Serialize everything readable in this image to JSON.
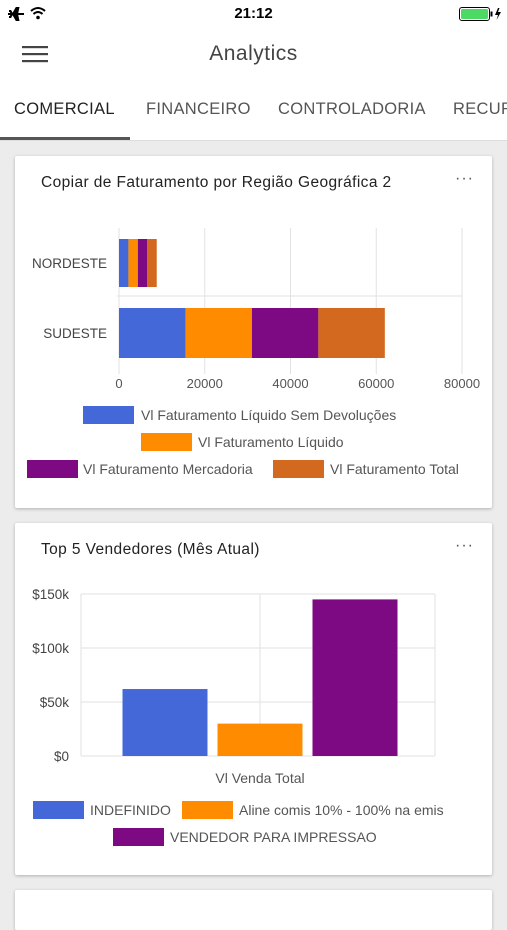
{
  "status_bar": {
    "time": "21:12"
  },
  "header": {
    "title": "Analytics"
  },
  "tabs": [
    {
      "label": "COMERCIAL",
      "active": true
    },
    {
      "label": "FINANCEIRO",
      "active": false
    },
    {
      "label": "CONTROLADORIA",
      "active": false
    },
    {
      "label": "RECUR",
      "active": false
    }
  ],
  "icons": {
    "menu": "hamburger-menu-icon",
    "more": "ellipsis-icon"
  },
  "cards": [
    {
      "title": "Copiar de Faturamento por Região Geográfica 2",
      "menu": "···"
    },
    {
      "title": "Top 5 Vendedores (Mês Atual)",
      "menu": "···"
    }
  ],
  "chart_data": [
    {
      "type": "bar",
      "orientation": "horizontal",
      "stacked": true,
      "title": "Copiar de Faturamento por Região Geográfica 2",
      "categories": [
        "NORDESTE",
        "SUDESTE"
      ],
      "series": [
        {
          "name": "Vl Faturamento Líquido Sem Devoluções",
          "color": "#4468d8",
          "values": [
            2200,
            15500
          ]
        },
        {
          "name": "Vl Faturamento Líquido",
          "color": "#ff8c00",
          "values": [
            2200,
            15500
          ]
        },
        {
          "name": "Vl Faturamento Mercadoria",
          "color": "#7d0a82",
          "values": [
            2200,
            15500
          ]
        },
        {
          "name": "Vl Faturamento Total",
          "color": "#d2691e",
          "values": [
            2200,
            15500
          ]
        }
      ],
      "xlim": [
        0,
        80000
      ],
      "xticks": [
        "0",
        "20000",
        "40000",
        "60000",
        "80000"
      ],
      "grid": true,
      "legend_position": "bottom"
    },
    {
      "type": "bar",
      "title": "Top 5 Vendedores (Mês Atual)",
      "categories": [
        "Vl Venda Total"
      ],
      "series": [
        {
          "name": "INDEFINIDO",
          "color": "#4468d8",
          "values": [
            62000
          ]
        },
        {
          "name": "Aline comis 10% - 100% na emis",
          "color": "#ff8c00",
          "values": [
            30000
          ]
        },
        {
          "name": "VENDEDOR PARA IMPRESSAO",
          "color": "#7d0a82",
          "values": [
            145000
          ]
        }
      ],
      "ylim": [
        0,
        150000
      ],
      "yticks": [
        "$0",
        "$50k",
        "$100k",
        "$150k"
      ],
      "grid": true,
      "legend_position": "bottom"
    }
  ]
}
